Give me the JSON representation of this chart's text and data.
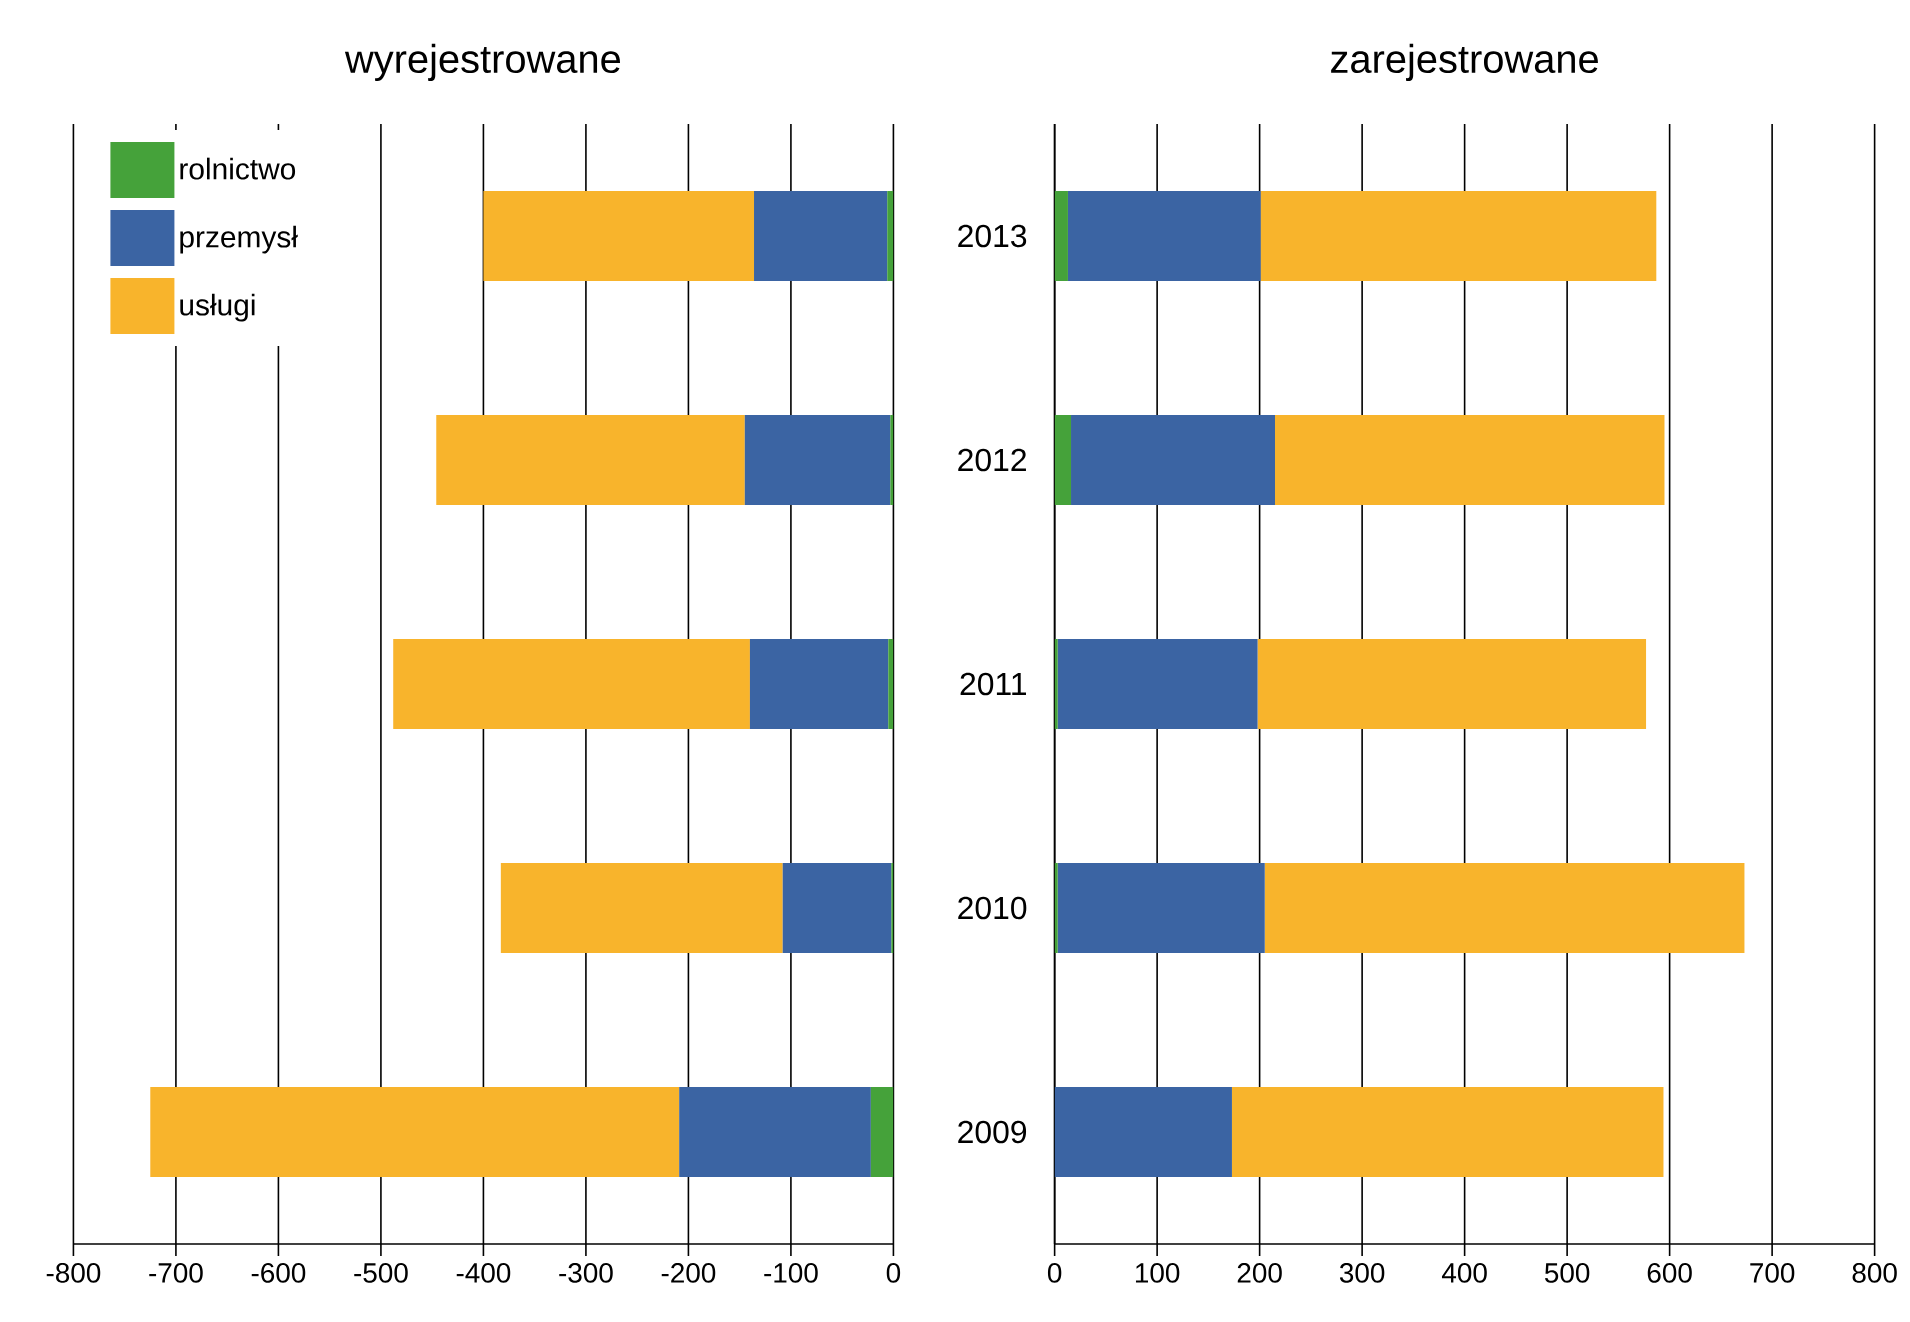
{
  "chart_data": [
    {
      "type": "bar",
      "orientation": "horizontal",
      "stacked": true,
      "title": "wyrejestrowane",
      "categories": [
        "2013",
        "2012",
        "2011",
        "2010",
        "2009"
      ],
      "series": [
        {
          "name": "rolnictwo",
          "color": "#45a23a",
          "values": [
            -6,
            -3,
            -5,
            -2,
            -22
          ]
        },
        {
          "name": "przemysł",
          "color": "#3b64a3",
          "values": [
            -130,
            -142,
            -135,
            -106,
            -187
          ]
        },
        {
          "name": "usługi",
          "color": "#f8b42c",
          "values": [
            -264,
            -301,
            -348,
            -275,
            -516
          ]
        }
      ],
      "xlim": [
        -800,
        0
      ],
      "xticks": [
        -800,
        -700,
        -600,
        -500,
        -400,
        -300,
        -200,
        -100,
        0
      ],
      "grid": "x",
      "legend": "top left",
      "tick_labels": "x"
    },
    {
      "type": "bar",
      "orientation": "horizontal",
      "stacked": true,
      "title": "zarejestrowane",
      "categories": [
        "2013",
        "2012",
        "2011",
        "2010",
        "2009"
      ],
      "series": [
        {
          "color": "#45a23a",
          "values": [
            13,
            16,
            3,
            3,
            0
          ]
        },
        {
          "color": "#3b64a3",
          "values": [
            188,
            199,
            195,
            202,
            173
          ]
        },
        {
          "color": "#f8b42c",
          "values": [
            386,
            380,
            379,
            468,
            421
          ]
        }
      ],
      "xlim": [
        0,
        800
      ],
      "xticks": [
        0,
        100,
        200,
        300,
        400,
        500,
        600,
        700,
        800
      ],
      "grid": "x",
      "legend": false
    }
  ]
}
